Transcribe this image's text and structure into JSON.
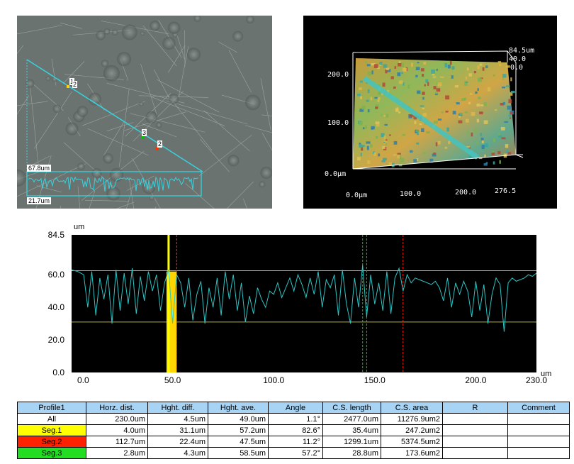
{
  "micro": {
    "marker_labels": [
      "1",
      "2",
      "3",
      "2"
    ],
    "scale_top": "67.8um",
    "scale_bottom": "21.7um"
  },
  "view3d": {
    "z_max": "84.5um",
    "z_mid": "40.0",
    "z_min": "0.0",
    "y_labels": [
      "200.0",
      "100.0",
      "0.0μm"
    ],
    "x_labels": [
      "0.0μm",
      "100.0",
      "200.0",
      "276.5"
    ]
  },
  "chart_data": {
    "type": "line",
    "ylabel": "um",
    "xlabel": "um",
    "y_ticks": [
      "84.5",
      "60.0",
      "40.0",
      "20.0",
      "0.0"
    ],
    "x_ticks": [
      "0.0",
      "50.0",
      "100.0",
      "150.0",
      "200.0",
      "230.0"
    ],
    "xlim": [
      0,
      230
    ],
    "ylim": [
      0,
      84.5
    ],
    "threshold_lines": [
      62.5,
      31.0
    ],
    "markers": [
      {
        "color": "#ffff00",
        "x": 48
      },
      {
        "color": "#ff3300",
        "x": 52
      },
      {
        "color": "#00cc00",
        "x": 144
      },
      {
        "color": "#00cc00",
        "x": 146
      },
      {
        "color": "#ff2200",
        "x": 164
      }
    ],
    "series": [
      {
        "color": "#2ec4c4",
        "x": [
          0,
          3,
          6,
          8,
          10,
          12,
          14,
          16,
          18,
          20,
          22,
          24,
          26,
          28,
          30,
          32,
          34,
          36,
          38,
          40,
          42,
          44,
          46,
          48,
          50,
          52,
          54,
          56,
          58,
          60,
          62,
          64,
          66,
          68,
          70,
          72,
          74,
          76,
          78,
          80,
          82,
          84,
          86,
          88,
          90,
          92,
          94,
          96,
          98,
          100,
          102,
          104,
          106,
          108,
          110,
          112,
          114,
          116,
          118,
          120,
          122,
          124,
          126,
          128,
          130,
          132,
          134,
          136,
          138,
          140,
          142,
          144,
          146,
          148,
          150,
          152,
          154,
          156,
          158,
          160,
          162,
          164,
          166,
          168,
          170,
          172,
          174,
          176,
          178,
          180,
          182,
          184,
          186,
          188,
          190,
          192,
          194,
          196,
          198,
          200,
          202,
          204,
          206,
          208,
          210,
          212,
          214,
          216,
          218,
          220,
          222,
          224,
          226,
          228,
          230
        ],
        "y": [
          63,
          62,
          60,
          40,
          62,
          35,
          58,
          45,
          60,
          30,
          63,
          38,
          61,
          42,
          64,
          36,
          59,
          44,
          62,
          50,
          60,
          38,
          55,
          63,
          30,
          60,
          55,
          40,
          58,
          32,
          48,
          56,
          30,
          52,
          40,
          58,
          35,
          62,
          45,
          60,
          38,
          55,
          31,
          47,
          36,
          52,
          45,
          40,
          50,
          48,
          55,
          46,
          52,
          58,
          50,
          60,
          54,
          46,
          58,
          48,
          62,
          40,
          57,
          52,
          60,
          35,
          63,
          42,
          30,
          58,
          40,
          66,
          34,
          60,
          42,
          55,
          38,
          62,
          36,
          58,
          64,
          50,
          60,
          55,
          58,
          57,
          56,
          55,
          54,
          56,
          52,
          44,
          58,
          40,
          55,
          48,
          56,
          50,
          34,
          56,
          38,
          54,
          30,
          48,
          58,
          54,
          25,
          55,
          58,
          56,
          57,
          58,
          60,
          59,
          61
        ]
      }
    ]
  },
  "table": {
    "headers": [
      "Profile1",
      "Horz. dist.",
      "Hght. diff.",
      "Hght. ave.",
      "Angle",
      "C.S. length",
      "C.S. area",
      "R",
      "Comment"
    ],
    "rows": [
      {
        "name": "All",
        "color": "#ffffff",
        "cells": [
          "230.0um",
          "4.5um",
          "49.0um",
          "1.1°",
          "2477.0um",
          "11276.9um2",
          "",
          ""
        ]
      },
      {
        "name": "Seg.1",
        "color": "#ffff00",
        "cells": [
          "4.0um",
          "31.1um",
          "57.2um",
          "82.6°",
          "35.4um",
          "247.2um2",
          "",
          ""
        ]
      },
      {
        "name": "Seg.2",
        "color": "#ff2200",
        "cells": [
          "112.7um",
          "22.4um",
          "47.5um",
          "11.2°",
          "1299.1um",
          "5374.5um2",
          "",
          ""
        ]
      },
      {
        "name": "Seg.3",
        "color": "#22dd22",
        "cells": [
          "2.8um",
          "4.3um",
          "58.5um",
          "57.2°",
          "28.8um",
          "173.6um2",
          "",
          ""
        ]
      }
    ]
  }
}
